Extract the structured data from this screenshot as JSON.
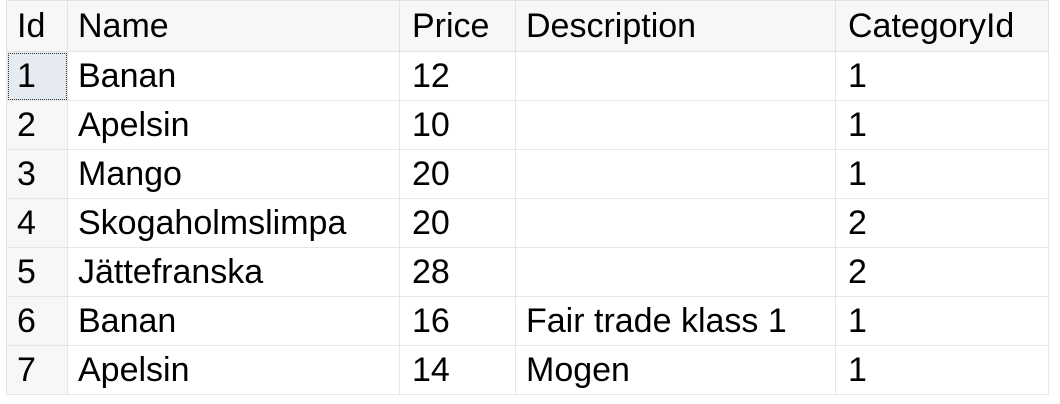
{
  "grid": {
    "columns": [
      "Id",
      "Name",
      "Price",
      "Description",
      "CategoryId"
    ],
    "rows": [
      [
        "1",
        "Banan",
        "12",
        "",
        "1"
      ],
      [
        "2",
        "Apelsin",
        "10",
        "",
        "1"
      ],
      [
        "3",
        "Mango",
        "20",
        "",
        "1"
      ],
      [
        "4",
        "Skogaholmslimpa",
        "20",
        "",
        "2"
      ],
      [
        "5",
        "Jättefranska",
        "28",
        "",
        "2"
      ],
      [
        "6",
        "Banan",
        "16",
        "Fair trade klass 1",
        "1"
      ],
      [
        "7",
        "Apelsin",
        "14",
        "Mogen",
        "1"
      ]
    ]
  }
}
